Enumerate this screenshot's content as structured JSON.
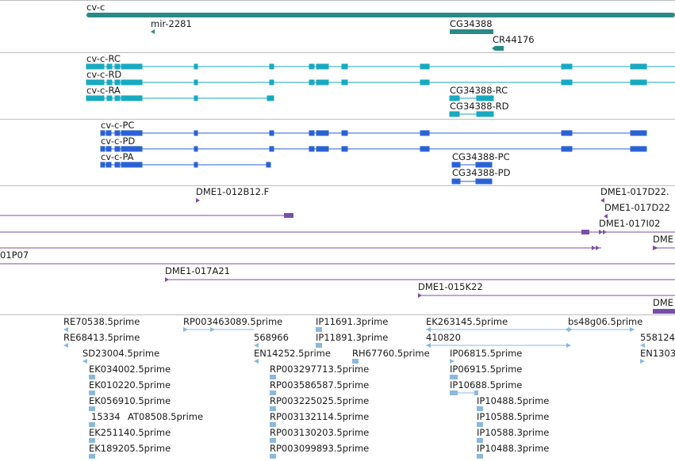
{
  "colors": {
    "gene": "#2a8a88",
    "transcript": "#17aac0",
    "protein": "#2a62d6",
    "clone": "#7a4ea8",
    "est": "#8ab8e0",
    "divider": "#bdbdbd",
    "text": "#1a1a1a"
  },
  "tracks": {
    "genes": {
      "labels": [
        "cv-c",
        "mir-2281",
        "CG34388",
        "CR44176"
      ]
    },
    "transcripts": {
      "labels": [
        "cv-c-RC",
        "cv-c-RD",
        "cv-c-RA",
        "CG34388-RC",
        "CG34388-RD"
      ]
    },
    "proteins": {
      "labels": [
        "cv-c-PC",
        "cv-c-PD",
        "cv-c-PA",
        "CG34388-PC",
        "CG34388-PD"
      ]
    },
    "clones": {
      "labels": [
        "DME1-012B12.F",
        "DME1-017D22.",
        "DME1-017D22",
        "DME1-017I02",
        "01P07",
        "DME1-017A21",
        "DME1-015K22",
        "DME",
        "DME"
      ]
    },
    "ests": {
      "labels": [
        "RE70538.5prime",
        "RE68413.5prime",
        "SD23004.5prime",
        "EK034002.5prime",
        "EK010220.5prime",
        "EK056910.5prime",
        "15334",
        "AT08508.5prime",
        "EK251140.5prime",
        "EK189205.5prime",
        "RP003463089.5prime",
        "568966",
        "EN14252.5prime",
        "RP003297713.5prime",
        "RP003586587.5prime",
        "RP003225025.5prime",
        "RP003132114.5prime",
        "RP003130203.5prime",
        "RP003099893.5prime",
        "IP11691.3prime",
        "IP11891.3prime",
        "RH67760.5prime",
        "EK263145.5prime",
        "410820",
        "IP06815.5prime",
        "IP06915.5prime",
        "IP10688.5prime",
        "IP10488.5prime",
        "IP10588.5prime",
        "IP10588.3prime",
        "IP10488.3prime",
        "bs48g06.5prime",
        "558124",
        "EN1303"
      ]
    }
  }
}
